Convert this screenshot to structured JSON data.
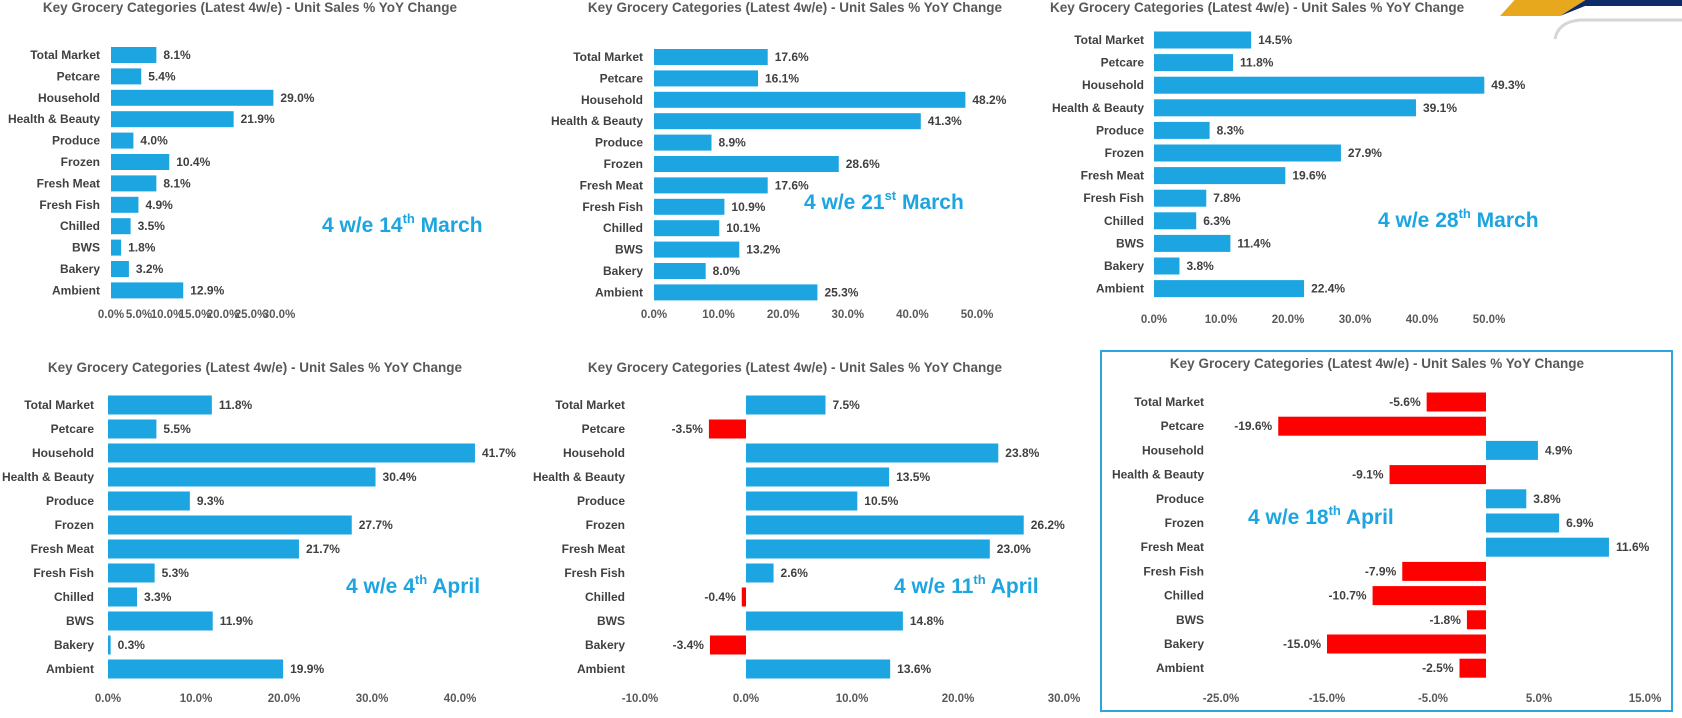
{
  "colors": {
    "positive": "#1CA5E0",
    "negative": "#FF0000",
    "period_text": "#1CA5E0",
    "highlight_border": "#2BA6DE"
  },
  "charts": [
    {
      "title": "Key Grocery Categories (Latest 4w/e) - Unit Sales % YoY Change",
      "period": {
        "prefix": "4 w/e 14",
        "sup": "th",
        "suffix": " March"
      },
      "ticks": [
        "0.0%",
        "5.0%",
        "10.0%",
        "15.0%",
        "20.0%",
        "25.0%",
        "30.0%"
      ],
      "labels": [
        "8.1%",
        "5.4%",
        "29.0%",
        "21.9%",
        "4.0%",
        "10.4%",
        "8.1%",
        "4.9%",
        "3.5%",
        "1.8%",
        "3.2%",
        "12.9%"
      ]
    },
    {
      "title": "Key Grocery Categories (Latest 4w/e) - Unit Sales % YoY Change",
      "period": {
        "prefix": "4 w/e 21",
        "sup": "st",
        "suffix": " March"
      },
      "ticks": [
        "0.0%",
        "10.0%",
        "20.0%",
        "30.0%",
        "40.0%",
        "50.0%"
      ],
      "labels": [
        "17.6%",
        "16.1%",
        "48.2%",
        "41.3%",
        "8.9%",
        "28.6%",
        "17.6%",
        "10.9%",
        "10.1%",
        "13.2%",
        "8.0%",
        "25.3%"
      ]
    },
    {
      "title": "Key Grocery Categories (Latest 4w/e) - Unit Sales % YoY Change",
      "period": {
        "prefix": "4 w/e 28",
        "sup": "th",
        "suffix": " March"
      },
      "ticks": [
        "0.0%",
        "10.0%",
        "20.0%",
        "30.0%",
        "40.0%",
        "50.0%"
      ],
      "labels": [
        "14.5%",
        "11.8%",
        "49.3%",
        "39.1%",
        "8.3%",
        "27.9%",
        "19.6%",
        "7.8%",
        "6.3%",
        "11.4%",
        "3.8%",
        "22.4%"
      ]
    },
    {
      "title": "Key Grocery Categories (Latest 4w/e) - Unit Sales % YoY Change",
      "period": {
        "prefix": "4 w/e 4",
        "sup": "th",
        "suffix": " April"
      },
      "ticks": [
        "0.0%",
        "10.0%",
        "20.0%",
        "30.0%",
        "40.0%"
      ],
      "labels": [
        "11.8%",
        "5.5%",
        "41.7%",
        "30.4%",
        "9.3%",
        "27.7%",
        "21.7%",
        "5.3%",
        "3.3%",
        "11.9%",
        "0.3%",
        "19.9%"
      ]
    },
    {
      "title": "Key Grocery Categories (Latest 4w/e) - Unit Sales % YoY Change",
      "period": {
        "prefix": "4 w/e 11",
        "sup": "th",
        "suffix": " April"
      },
      "ticks": [
        "-10.0%",
        "0.0%",
        "10.0%",
        "20.0%",
        "30.0%"
      ],
      "labels": [
        "7.5%",
        "-3.5%",
        "23.8%",
        "13.5%",
        "10.5%",
        "26.2%",
        "23.0%",
        "2.6%",
        "-0.4%",
        "14.8%",
        "-3.4%",
        "13.6%"
      ]
    },
    {
      "title": "Key Grocery Categories (Latest 4w/e) - Unit Sales % YoY Change",
      "period": {
        "prefix": "4 w/e 18",
        "sup": "th",
        "suffix": " April"
      },
      "ticks": [
        "-25.0%",
        "-15.0%",
        "-5.0%",
        "5.0%",
        "15.0%"
      ],
      "labels": [
        "-5.6%",
        "-19.6%",
        "4.9%",
        "-9.1%",
        "3.8%",
        "6.9%",
        "11.6%",
        "-7.9%",
        "-10.7%",
        "-1.8%",
        "-15.0%",
        "-2.5%"
      ]
    }
  ],
  "chart_data": [
    {
      "type": "bar",
      "orientation": "horizontal",
      "title": "Key Grocery Categories (Latest 4w/e) - Unit Sales % YoY Change",
      "categories": [
        "Total Market",
        "Petcare",
        "Household",
        "Health & Beauty",
        "Produce",
        "Frozen",
        "Fresh Meat",
        "Fresh Fish",
        "Chilled",
        "BWS",
        "Bakery",
        "Ambient"
      ],
      "values": [
        8.1,
        5.4,
        29.0,
        21.9,
        4.0,
        10.4,
        8.1,
        4.9,
        3.5,
        1.8,
        3.2,
        12.9
      ],
      "xlim": [
        0,
        33
      ],
      "tick_values": [
        0,
        5,
        10,
        15,
        20,
        25,
        30
      ],
      "grid": false,
      "legend": "none"
    },
    {
      "type": "bar",
      "orientation": "horizontal",
      "title": "Key Grocery Categories (Latest 4w/e) - Unit Sales % YoY Change",
      "categories": [
        "Total Market",
        "Petcare",
        "Household",
        "Health & Beauty",
        "Produce",
        "Frozen",
        "Fresh Meat",
        "Fresh Fish",
        "Chilled",
        "BWS",
        "Bakery",
        "Ambient"
      ],
      "values": [
        17.6,
        16.1,
        48.2,
        41.3,
        8.9,
        28.6,
        17.6,
        10.9,
        10.1,
        13.2,
        8.0,
        25.3
      ],
      "xlim": [
        0,
        50
      ],
      "tick_values": [
        0,
        10,
        20,
        30,
        40,
        50
      ],
      "grid": false,
      "legend": "none"
    },
    {
      "type": "bar",
      "orientation": "horizontal",
      "title": "Key Grocery Categories (Latest 4w/e) - Unit Sales % YoY Change",
      "categories": [
        "Total Market",
        "Petcare",
        "Household",
        "Health & Beauty",
        "Produce",
        "Frozen",
        "Fresh Meat",
        "Fresh Fish",
        "Chilled",
        "BWS",
        "Bakery",
        "Ambient"
      ],
      "values": [
        14.5,
        11.8,
        49.3,
        39.1,
        8.3,
        27.9,
        19.6,
        7.8,
        6.3,
        11.4,
        3.8,
        22.4
      ],
      "xlim": [
        0,
        58
      ],
      "tick_values": [
        0,
        10,
        20,
        30,
        40,
        50
      ],
      "grid": false,
      "legend": "none"
    },
    {
      "type": "bar",
      "orientation": "horizontal",
      "title": "Key Grocery Categories (Latest 4w/e) - Unit Sales % YoY Change",
      "categories": [
        "Total Market",
        "Petcare",
        "Household",
        "Health & Beauty",
        "Produce",
        "Frozen",
        "Fresh Meat",
        "Fresh Fish",
        "Chilled",
        "BWS",
        "Bakery",
        "Ambient"
      ],
      "values": [
        11.8,
        5.5,
        41.7,
        30.4,
        9.3,
        27.7,
        21.7,
        5.3,
        3.3,
        11.9,
        0.3,
        19.9
      ],
      "xlim": [
        0,
        46
      ],
      "tick_values": [
        0,
        10,
        20,
        30,
        40
      ],
      "grid": false,
      "legend": "none"
    },
    {
      "type": "bar",
      "orientation": "horizontal",
      "title": "Key Grocery Categories (Latest 4w/e) - Unit Sales % YoY Change",
      "categories": [
        "Total Market",
        "Petcare",
        "Household",
        "Health & Beauty",
        "Produce",
        "Frozen",
        "Fresh Meat",
        "Fresh Fish",
        "Chilled",
        "BWS",
        "Bakery",
        "Ambient"
      ],
      "values": [
        7.5,
        -3.5,
        23.8,
        13.5,
        10.5,
        26.2,
        23.0,
        2.6,
        -0.4,
        14.8,
        -3.4,
        13.6
      ],
      "xlim": [
        -10,
        30
      ],
      "tick_values": [
        -10,
        0,
        10,
        20,
        30
      ],
      "grid": false,
      "legend": "none"
    },
    {
      "type": "bar",
      "orientation": "horizontal",
      "title": "Key Grocery Categories (Latest 4w/e) - Unit Sales % YoY Change",
      "categories": [
        "Total Market",
        "Petcare",
        "Household",
        "Health & Beauty",
        "Produce",
        "Frozen",
        "Fresh Meat",
        "Fresh Fish",
        "Chilled",
        "BWS",
        "Bakery",
        "Ambient"
      ],
      "values": [
        -5.6,
        -19.6,
        4.9,
        -9.1,
        3.8,
        6.9,
        11.6,
        -7.9,
        -10.7,
        -1.8,
        -15.0,
        -2.5
      ],
      "xlim": [
        -25,
        15
      ],
      "tick_values": [
        -25,
        -15,
        -5,
        5,
        15
      ],
      "grid": false,
      "legend": "none"
    }
  ]
}
